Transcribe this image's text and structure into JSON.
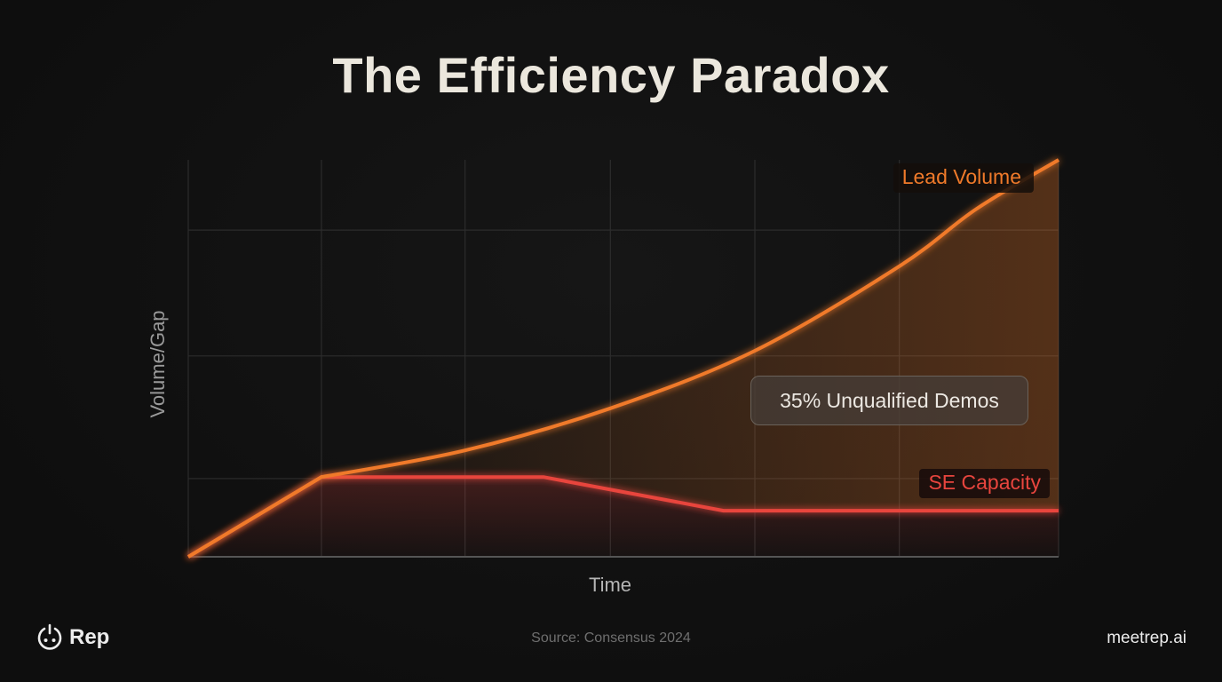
{
  "title": "The Efficiency Paradox",
  "footer": {
    "logo_text": "Rep",
    "logo_icon": "power-face-icon",
    "source": "Source: Consensus 2024",
    "site": "meetrep.ai"
  },
  "callout": "35% Unqualified Demos",
  "colors": {
    "background": "#0f0f0f",
    "lead": "#f07a2a",
    "capacity": "#e8453e",
    "grid": "#2c2c2c"
  },
  "chart_data": {
    "type": "line",
    "title": "The Efficiency Paradox",
    "xlabel": "Time",
    "ylabel": "Volume/Gap",
    "xlim": [
      0,
      100
    ],
    "ylim": [
      0,
      100
    ],
    "grid": true,
    "x_gridlines": [
      0,
      15.3,
      31.8,
      48.5,
      65.1,
      81.7,
      100
    ],
    "y_gridlines": [
      0,
      19.7,
      50.6,
      82.3
    ],
    "series": [
      {
        "name": "Lead Volume",
        "color": "#f07a2a",
        "curve": "smooth",
        "points": [
          [
            0,
            0
          ],
          [
            15.3,
            20.1
          ],
          [
            31.8,
            26.8
          ],
          [
            48.5,
            37.4
          ],
          [
            65.1,
            51.9
          ],
          [
            81.7,
            73.2
          ],
          [
            90.6,
            87.7
          ],
          [
            100,
            100
          ]
        ]
      },
      {
        "name": "SE Capacity",
        "color": "#e8453e",
        "curve": "linear",
        "points": [
          [
            0,
            0
          ],
          [
            15.3,
            20.1
          ],
          [
            40.8,
            20.1
          ],
          [
            61.5,
            11.6
          ],
          [
            100,
            11.6
          ]
        ]
      }
    ],
    "annotations": [
      "35% Unqualified Demos"
    ],
    "legend": "inline-labels"
  }
}
